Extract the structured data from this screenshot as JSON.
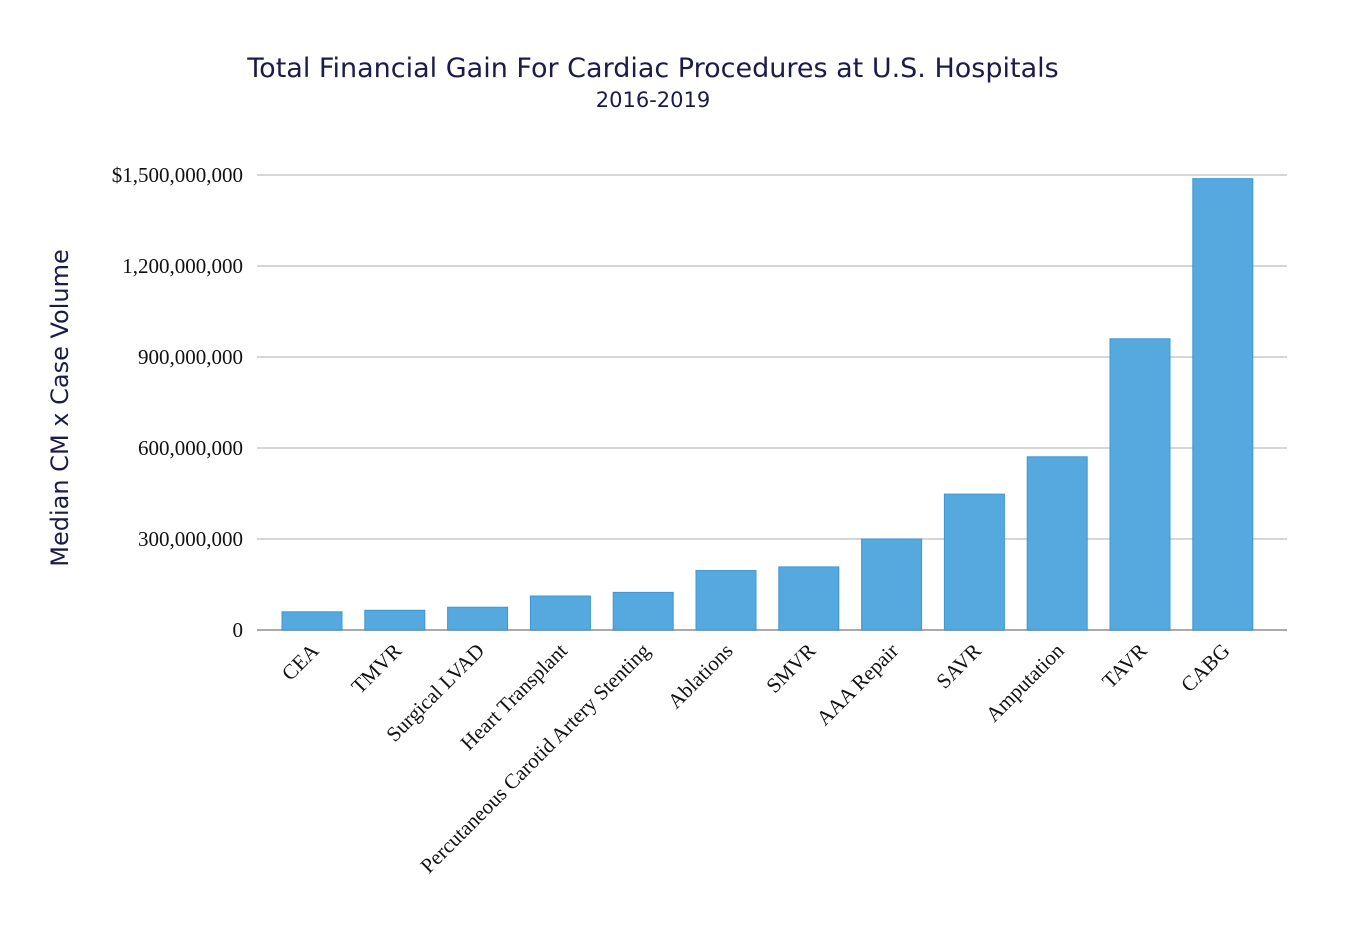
{
  "chart_data": {
    "type": "bar",
    "title": "Total Financial Gain For Cardiac Procedures at U.S. Hospitals",
    "subtitle": "2016-2019",
    "xlabel": "",
    "ylabel": "Median CM x Case Volume",
    "ylim": [
      0,
      1500000000
    ],
    "yticks": [
      0,
      300000000,
      600000000,
      900000000,
      1200000000,
      1500000000
    ],
    "ytick_labels": [
      "0",
      "300,000,000",
      "600,000,000",
      "900,000,000",
      "1,200,000,000",
      "$1,500,000,000"
    ],
    "grid": true,
    "categories": [
      "CEA",
      "TMVR",
      "Surgical LVAD",
      "Heart Transplant",
      "Percutaneous Carotid Artery Stenting",
      "Ablations",
      "SMVR",
      "AAA Repair",
      "SAVR",
      "Amputation",
      "TAVR",
      "CABG"
    ],
    "values": [
      60000000,
      65000000,
      75000000,
      112000000,
      124000000,
      196000000,
      208000000,
      300000000,
      448000000,
      571000000,
      960000000,
      1488000000
    ],
    "colors": {
      "bar": "#56a9de",
      "bar_edge": "#3d97d3",
      "grid": "#bdbdbd",
      "title": "#1b1b4b"
    }
  }
}
